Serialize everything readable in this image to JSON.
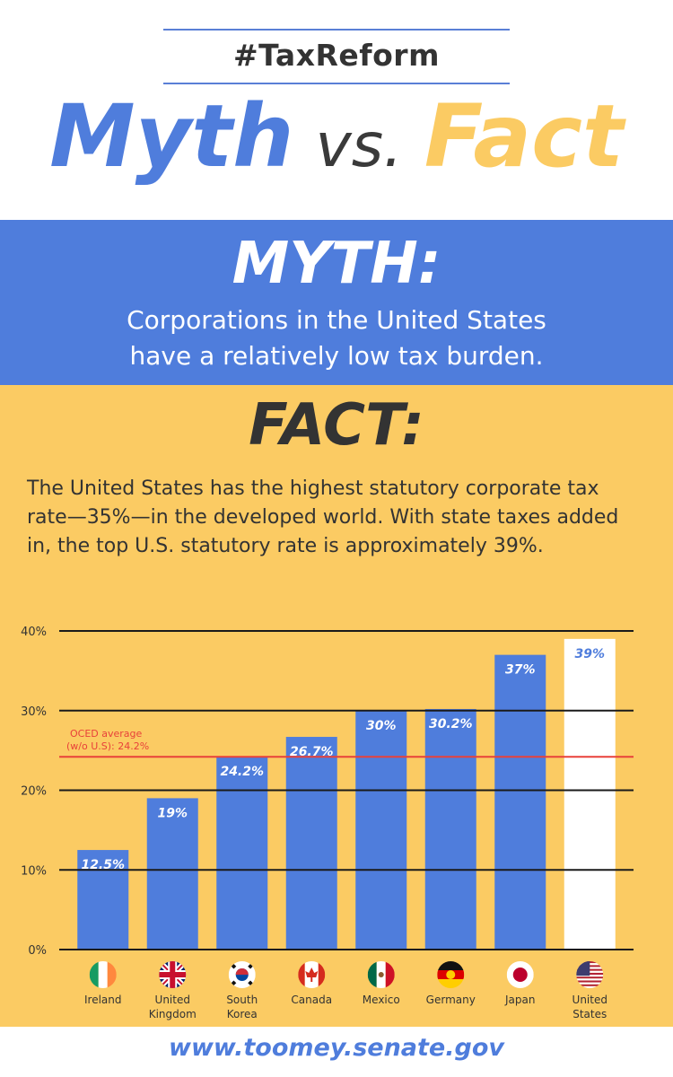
{
  "header": {
    "hashtag": "#TaxReform",
    "title_myth": "Myth",
    "title_vs": "vs.",
    "title_fact": "Fact"
  },
  "myth": {
    "heading": "MYTH:",
    "text": "Corporations in the United States\nhave a relatively low tax burden."
  },
  "fact": {
    "heading": "FACT:",
    "text": "The United States has the highest statutory corporate tax\nrate—35%—in the developed world. With state taxes added\nin, the top U.S. statutory rate is approximately 39%."
  },
  "colors": {
    "blue": "#4f7ddc",
    "yellow": "#fbcb63",
    "dark": "#333333",
    "average_line": "#e8413a",
    "us_bar": "#ffffff"
  },
  "chart_data": {
    "type": "bar",
    "categories": [
      "Ireland",
      "United Kingdom",
      "South Korea",
      "Canada",
      "Mexico",
      "Germany",
      "Japan",
      "United States"
    ],
    "category_lines": [
      [
        "Ireland"
      ],
      [
        "United",
        "Kingdom"
      ],
      [
        "South",
        "Korea"
      ],
      [
        "Canada"
      ],
      [
        "Mexico"
      ],
      [
        "Germany"
      ],
      [
        "Japan"
      ],
      [
        "United",
        "States"
      ]
    ],
    "values": [
      12.5,
      19,
      24.2,
      26.7,
      30,
      30.2,
      37,
      39
    ],
    "data_labels": [
      "12.5%",
      "19%",
      "24.2%",
      "26.7%",
      "30%",
      "30.2%",
      "37%",
      "39%"
    ],
    "flags": [
      "ireland-flag-icon",
      "uk-flag-icon",
      "south-korea-flag-icon",
      "canada-flag-icon",
      "mexico-flag-icon",
      "germany-flag-icon",
      "japan-flag-icon",
      "us-flag-icon"
    ],
    "yticks": [
      0,
      10,
      20,
      30,
      40
    ],
    "ytick_labels": [
      "0%",
      "10%",
      "20%",
      "30%",
      "40%"
    ],
    "ylim": [
      0,
      40
    ],
    "grid": true,
    "reference_line": {
      "value": 24.2,
      "label_lines": [
        "OCED average",
        "(w/o U.S): 24.2%"
      ]
    },
    "highlight_index": 7
  },
  "footer": {
    "url": "www.toomey.senate.gov"
  }
}
